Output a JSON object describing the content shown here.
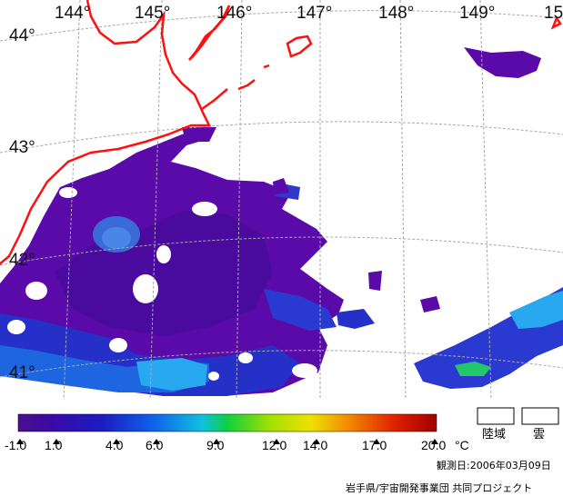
{
  "map": {
    "longitude_labels": [
      "144°",
      "145°",
      "146°",
      "147°",
      "148°",
      "149°",
      "15"
    ],
    "latitude_labels": [
      "44°",
      "43°",
      "42°",
      "41°"
    ],
    "colors": {
      "coastline": "#ff1010",
      "sea_cold": "#5a0aa8",
      "sea_deep": "#4a0a9e",
      "sea_mid_blue": "#2430c8",
      "sea_blue": "#1e66e0",
      "sea_cyan": "#28a8ee",
      "sea_green": "#22c86a",
      "cloud": "#ffffff",
      "grid": "#a8a8a8"
    }
  },
  "legend": {
    "tick_labels": [
      "-1.0",
      "1.0",
      "4.0",
      "6.0",
      "9.0",
      "12.0",
      "14.0",
      "17.0",
      "20.0"
    ],
    "unit": "°C",
    "land_label": "陸域",
    "cloud_label": "雲",
    "gradient_stops": [
      "#4b0f8c",
      "#3a0aa8",
      "#1c1cc0",
      "#1060e8",
      "#10c0e0",
      "#10d040",
      "#a0e000",
      "#f0e000",
      "#f08000",
      "#e02000",
      "#a00000"
    ]
  },
  "footer": {
    "observation_date": "観測日:2006年03月09日",
    "credit": "岩手県/宇宙開発事業団  共同プロジェクト"
  }
}
